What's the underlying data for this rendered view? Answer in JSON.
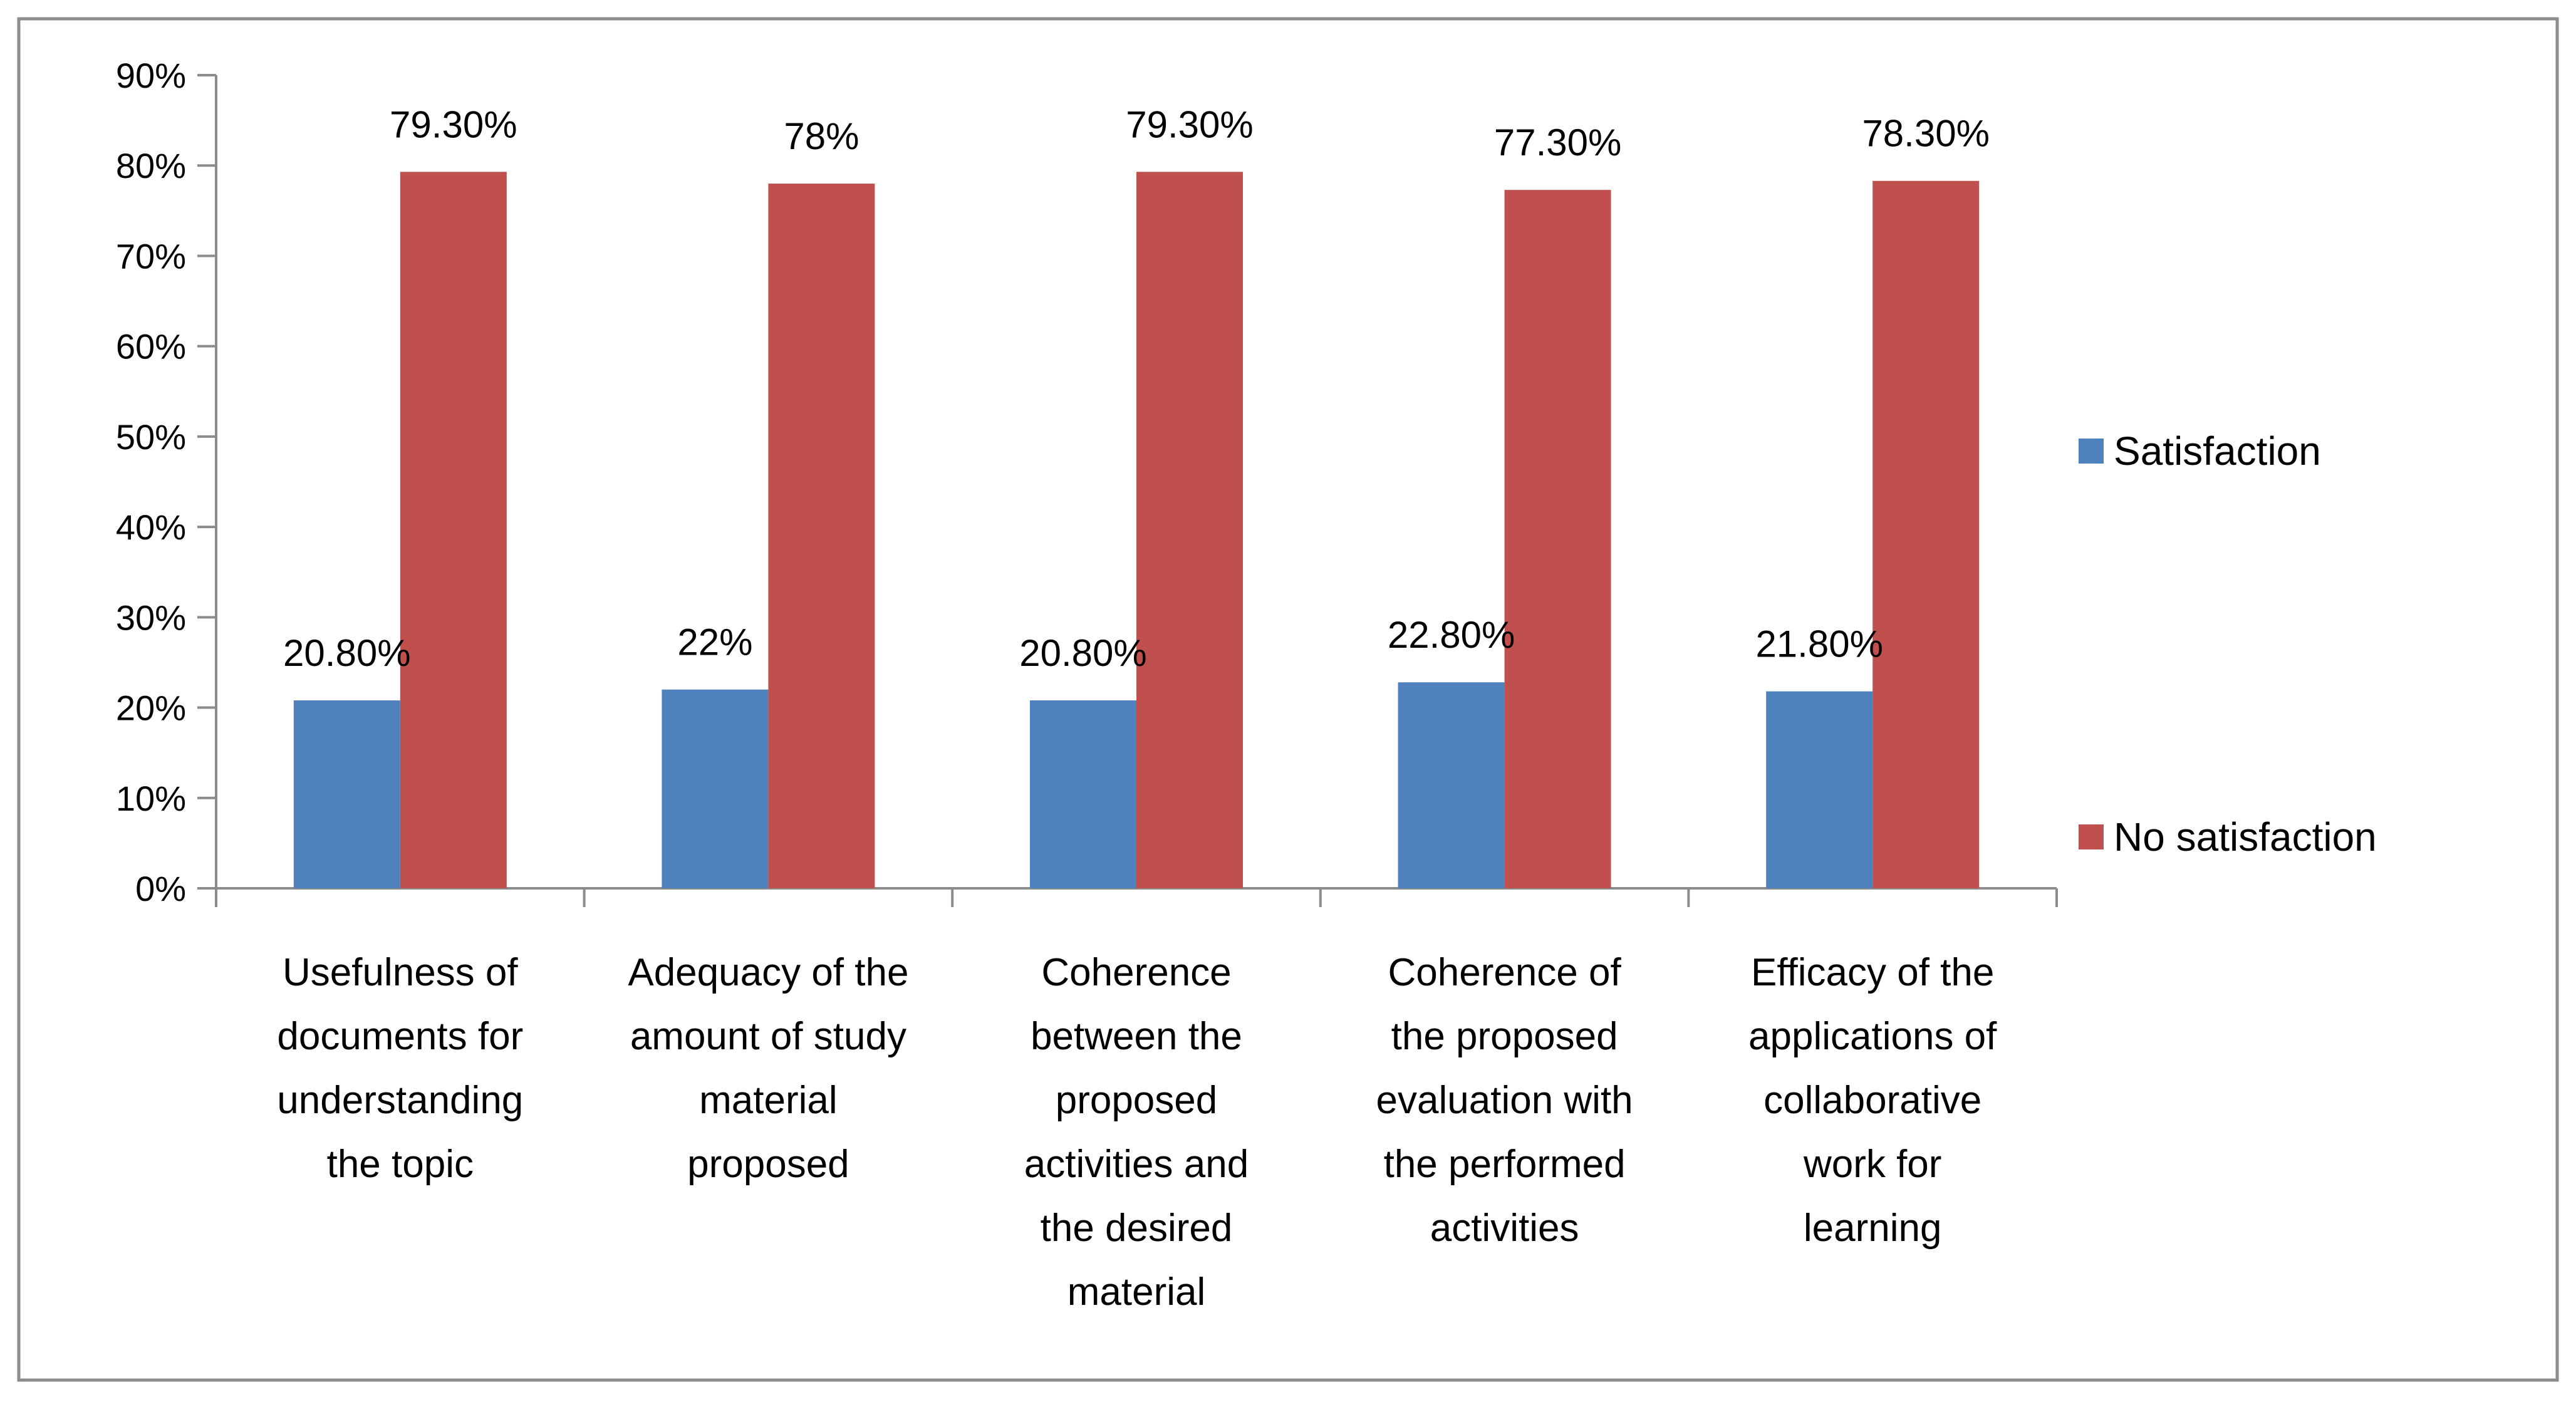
{
  "chart_data": {
    "type": "bar",
    "title": "",
    "xlabel": "",
    "ylabel": "",
    "ylim": [
      0,
      90
    ],
    "yticks": [
      0,
      10,
      20,
      30,
      40,
      50,
      60,
      70,
      80,
      90
    ],
    "ytick_labels": [
      "0%",
      "10%",
      "20%",
      "30%",
      "40%",
      "50%",
      "60%",
      "70%",
      "80%",
      "90%"
    ],
    "grid": false,
    "legend_position": "right",
    "categories": [
      [
        "Usefulness of",
        "documents for",
        "understanding",
        "the topic"
      ],
      [
        "Adequacy of the",
        "amount of study",
        "material",
        "proposed"
      ],
      [
        "Coherence",
        "between the",
        "proposed",
        "activities and",
        "the desired",
        "material"
      ],
      [
        "Coherence of",
        "the proposed",
        "evaluation with",
        "the performed",
        "activities"
      ],
      [
        "Efficacy  of the",
        "applications  of",
        "collaborative",
        "work for",
        "learning"
      ]
    ],
    "series": [
      {
        "name": "Satisfaction",
        "color": "#4F81BD",
        "values": [
          20.8,
          22,
          20.8,
          22.8,
          21.8
        ],
        "labels": [
          "20.80%",
          "22%",
          "20.80%",
          "22.80%",
          "21.80%"
        ]
      },
      {
        "name": "No satisfaction",
        "color": "#C0504D",
        "values": [
          79.3,
          78,
          79.3,
          77.3,
          78.3
        ],
        "labels": [
          "79.30%",
          "78%",
          "79.30%",
          "77.30%",
          "78.30%"
        ]
      }
    ]
  }
}
